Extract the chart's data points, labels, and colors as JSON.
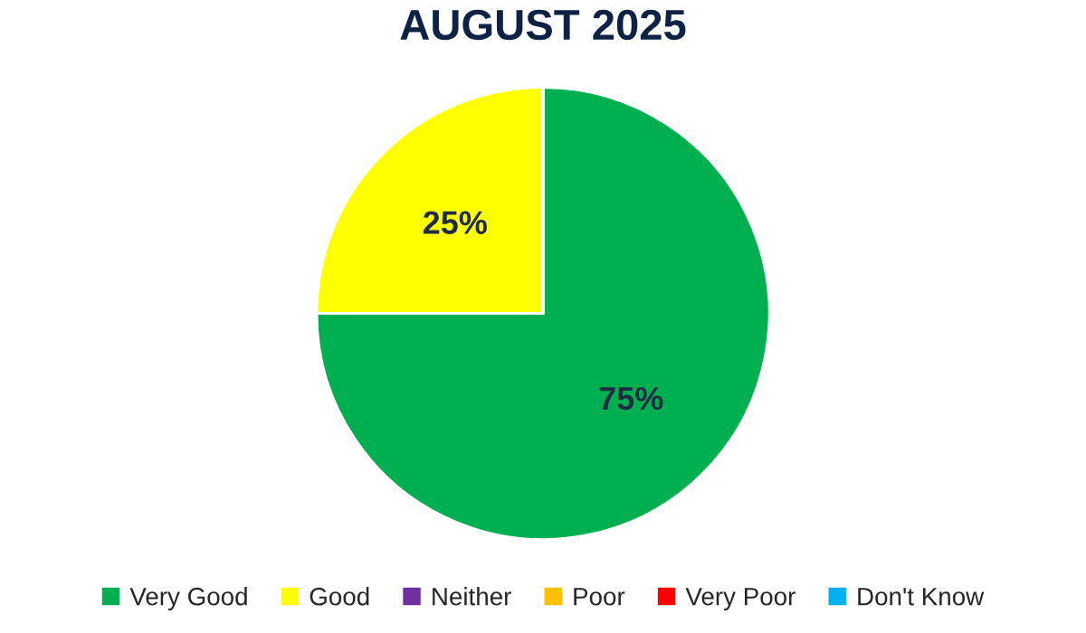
{
  "chart_data": {
    "type": "pie",
    "title": "AUGUST 2025",
    "categories": [
      "Very Good",
      "Good",
      "Neither",
      "Poor",
      "Very Poor",
      "Don't Know"
    ],
    "values": [
      75,
      25,
      0,
      0,
      0,
      0
    ],
    "colors": [
      "#00b050",
      "#ffff00",
      "#7030a0",
      "#ffc000",
      "#ff0000",
      "#00b0f0"
    ],
    "value_labels": [
      "75%",
      "25%",
      null,
      null,
      null,
      null
    ],
    "legend": "bottom"
  }
}
